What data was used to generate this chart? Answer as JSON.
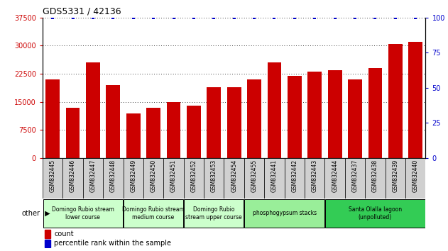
{
  "title": "GDS5331 / 42136",
  "samples": [
    "GSM832445",
    "GSM832446",
    "GSM832447",
    "GSM832448",
    "GSM832449",
    "GSM832450",
    "GSM832451",
    "GSM832452",
    "GSM832453",
    "GSM832454",
    "GSM832455",
    "GSM832441",
    "GSM832442",
    "GSM832443",
    "GSM832444",
    "GSM832437",
    "GSM832438",
    "GSM832439",
    "GSM832440"
  ],
  "counts": [
    21000,
    13500,
    25500,
    19500,
    12000,
    13500,
    15000,
    14000,
    19000,
    19000,
    21000,
    25500,
    22000,
    23000,
    23500,
    21000,
    24000,
    30500,
    31000
  ],
  "percentiles": [
    100,
    100,
    100,
    100,
    100,
    100,
    100,
    100,
    100,
    100,
    100,
    100,
    100,
    100,
    100,
    100,
    100,
    100,
    100
  ],
  "bar_color": "#cc0000",
  "percentile_color": "#0000cc",
  "ylim_left": [
    0,
    37500
  ],
  "ylim_right": [
    0,
    100
  ],
  "yticks_left": [
    0,
    7500,
    15000,
    22500,
    30000,
    37500
  ],
  "yticks_right": [
    0,
    25,
    50,
    75,
    100
  ],
  "groups": [
    {
      "label": "Domingo Rubio stream\nlower course",
      "start": 0,
      "end": 3,
      "color": "#ccffcc"
    },
    {
      "label": "Domingo Rubio stream\nmedium course",
      "start": 4,
      "end": 6,
      "color": "#ccffcc"
    },
    {
      "label": "Domingo Rubio\nstream upper course",
      "start": 7,
      "end": 9,
      "color": "#ccffcc"
    },
    {
      "label": "phosphogypsum stacks",
      "start": 10,
      "end": 13,
      "color": "#99ee99"
    },
    {
      "label": "Santa Olalla lagoon\n(unpolluted)",
      "start": 14,
      "end": 18,
      "color": "#33cc55"
    }
  ],
  "legend_count_label": "count",
  "legend_pct_label": "percentile rank within the sample",
  "bg_color": "#ffffff",
  "xtick_bg": "#d0d0d0"
}
